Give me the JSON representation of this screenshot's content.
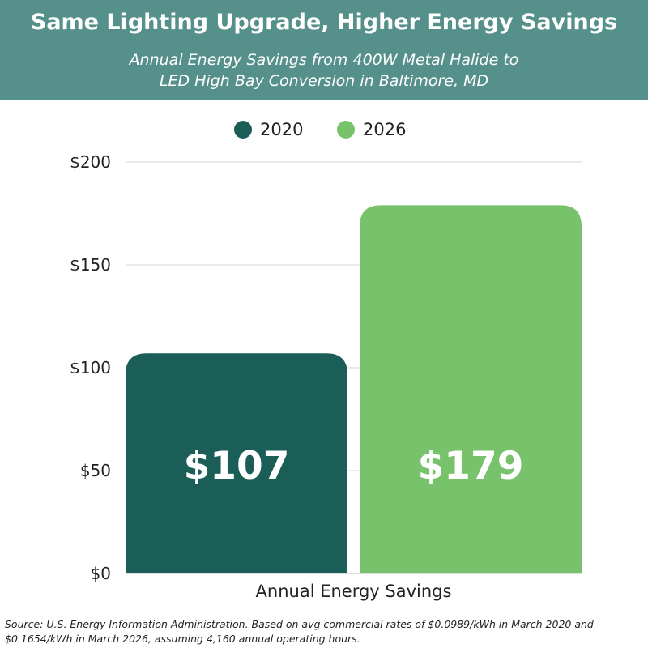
{
  "header": {
    "title": "Same Lighting Upgrade, Higher Energy Savings",
    "subtitle_line1": "Annual Energy Savings from 400W Metal Halide to",
    "subtitle_line2": "LED High Bay Conversion in Baltimore, MD"
  },
  "colors": {
    "header_bg": "#55908a",
    "series_2020": "#1b5e57",
    "series_2026": "#77c26b"
  },
  "chart_data": {
    "type": "bar",
    "title": "Same Lighting Upgrade, Higher Energy Savings",
    "subtitle": "Annual Energy Savings from 400W Metal Halide to LED High Bay Conversion in Baltimore, MD",
    "categories": [
      "Annual Energy Savings"
    ],
    "series": [
      {
        "name": "2020",
        "values": [
          107
        ],
        "label": "$107",
        "color": "#1b5e57"
      },
      {
        "name": "2026",
        "values": [
          179
        ],
        "label": "$179",
        "color": "#77c26b"
      }
    ],
    "xlabel": "Annual Energy Savings",
    "ylabel": "",
    "ylim": [
      0,
      200
    ],
    "yticks": [
      0,
      50,
      100,
      150,
      200
    ],
    "ytick_labels": [
      "$0",
      "$50",
      "$100",
      "$150",
      "$200"
    ],
    "grid": true,
    "legend": "top-center"
  },
  "footer": {
    "source_line1": "Source: U.S. Energy Information Administration. Based on avg commercial rates of $0.0989/kWh in March 2020 and",
    "source_line2": "$0.1654/kWh in March 2026, assuming 4,160 annual operating hours."
  }
}
